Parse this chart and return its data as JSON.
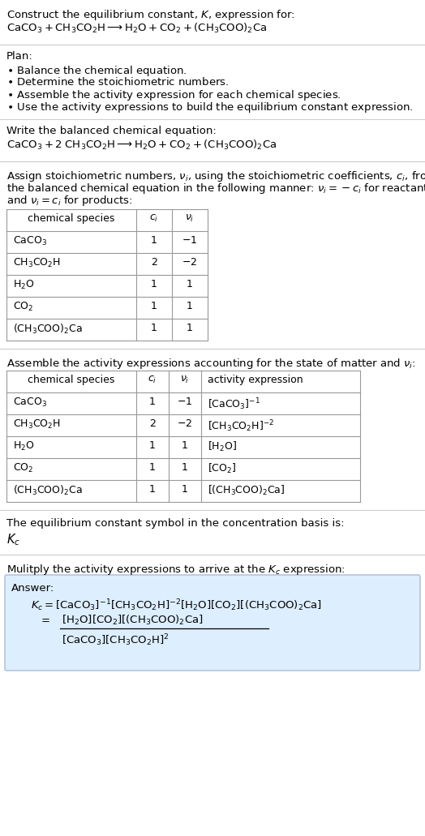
{
  "bg_color": "#ffffff",
  "text_color": "#000000",
  "table_border_color": "#999999",
  "answer_box_color": "#ddeeff",
  "answer_box_border": "#aabbdd",
  "fs": 9.5,
  "fs_s": 9.0,
  "lm": 8,
  "sections": {
    "title_line1": "Construct the equilibrium constant, $K$, expression for:",
    "title_line2": "$\\mathrm{CaCO_3 + CH_3CO_2H \\longrightarrow H_2O + CO_2 + (CH_3COO)_2Ca}$",
    "plan_header": "Plan:",
    "plan_items": [
      "\\bullet  Balance the chemical equation.",
      "\\bullet  Determine the stoichiometric numbers.",
      "\\bullet  Assemble the activity expression for each chemical species.",
      "\\bullet  Use the activity expressions to build the equilibrium constant expression."
    ],
    "balanced_header": "Write the balanced chemical equation:",
    "balanced_eq": "$\\mathrm{CaCO_3 + 2\\;CH_3CO_2H \\longrightarrow H_2O + CO_2 + (CH_3COO)_2Ca}$",
    "stoich_intro": [
      "Assign stoichiometric numbers, $\\nu_i$, using the stoichiometric coefficients, $c_i$, from",
      "the balanced chemical equation in the following manner: $\\nu_i = -c_i$ for reactants",
      "and $\\nu_i = c_i$ for products:"
    ],
    "table1_headers": [
      "chemical species",
      "$c_i$",
      "$\\nu_i$"
    ],
    "table1_rows": [
      [
        "$\\mathrm{CaCO_3}$",
        "1",
        "$-1$"
      ],
      [
        "$\\mathrm{CH_3CO_2H}$",
        "2",
        "$-2$"
      ],
      [
        "$\\mathrm{H_2O}$",
        "1",
        "1"
      ],
      [
        "$\\mathrm{CO_2}$",
        "1",
        "1"
      ],
      [
        "$\\mathrm{(CH_3COO)_2Ca}$",
        "1",
        "1"
      ]
    ],
    "activity_intro": "Assemble the activity expressions accounting for the state of matter and $\\nu_i$:",
    "table2_headers": [
      "chemical species",
      "$c_i$",
      "$\\nu_i$",
      "activity expression"
    ],
    "table2_rows": [
      [
        "$\\mathrm{CaCO_3}$",
        "1",
        "$-1$",
        "$[\\mathrm{CaCO_3}]^{-1}$"
      ],
      [
        "$\\mathrm{CH_3CO_2H}$",
        "2",
        "$-2$",
        "$[\\mathrm{CH_3CO_2H}]^{-2}$"
      ],
      [
        "$\\mathrm{H_2O}$",
        "1",
        "1",
        "$[\\mathrm{H_2O}]$"
      ],
      [
        "$\\mathrm{CO_2}$",
        "1",
        "1",
        "$[\\mathrm{CO_2}]$"
      ],
      [
        "$\\mathrm{(CH_3COO)_2Ca}$",
        "1",
        "1",
        "$[(\\mathrm{CH_3COO})_2\\mathrm{Ca}]$"
      ]
    ],
    "kc_intro": "The equilibrium constant symbol in the concentration basis is:",
    "kc_symbol": "$K_c$",
    "multiply_intro": "Mulitply the activity expressions to arrive at the $K_c$ expression:",
    "answer_label": "Answer:",
    "answer_kc_line": "$K_c = [\\mathrm{CaCO_3}]^{-1}[\\mathrm{CH_3CO_2H}]^{-2}[\\mathrm{H_2O}][\\mathrm{CO_2}][(\\mathrm{CH_3COO})_2\\mathrm{Ca}]$",
    "answer_num": "$[\\mathrm{H_2O}][\\mathrm{CO_2}][(\\mathrm{CH_3COO})_2\\mathrm{Ca}]$",
    "answer_den": "$[\\mathrm{CaCO_3}][\\mathrm{CH_3CO_2H}]^2$"
  }
}
